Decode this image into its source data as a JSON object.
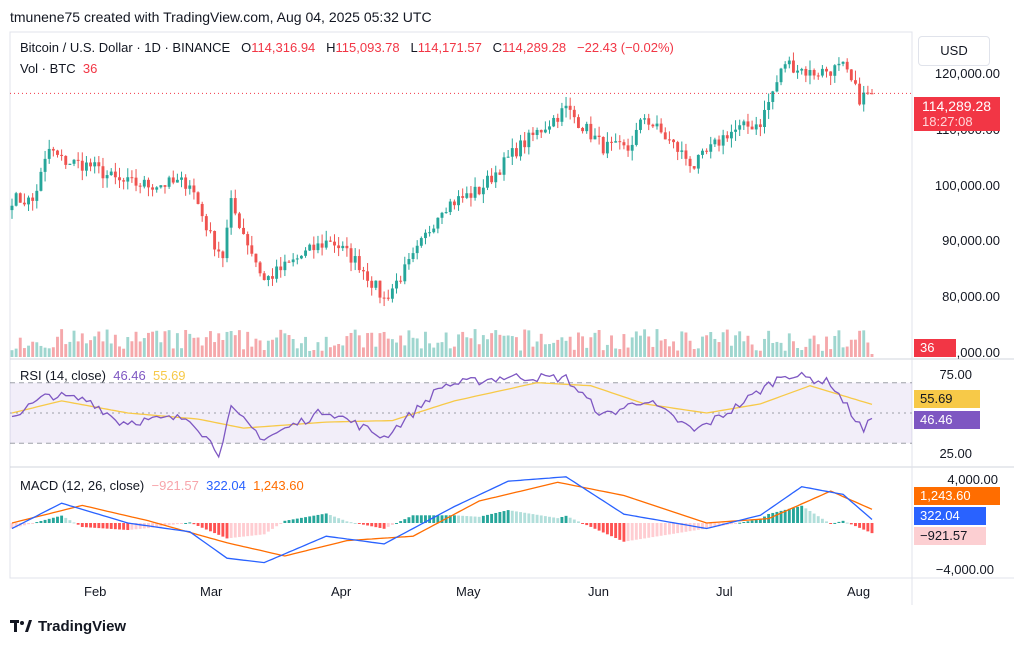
{
  "header": {
    "attribution": "tmunene75 created with TradingView.com, Aug 04, 2025 05:32 UTC"
  },
  "legend": {
    "symbol": "Bitcoin / U.S. Dollar · 1D · BINANCE",
    "o_label": "O",
    "o_value": "114,316.94",
    "h_label": "H",
    "h_value": "115,093.78",
    "l_label": "L",
    "l_value": "114,171.57",
    "c_label": "C",
    "c_value": "114,289.28",
    "change": "−22.43 (−0.02%)",
    "vol_label": "Vol · BTC",
    "vol_value": "36"
  },
  "currency_button": "USD",
  "price_axis": {
    "ticks": [
      "120,000.00",
      "110,000.00",
      "100,000.00",
      "90,000.00",
      "80,000.00",
      "70,000.00"
    ],
    "last_price": "114,289.28",
    "countdown": "18:27:08",
    "volume_badge": "36"
  },
  "rsi_panel": {
    "label": "RSI (14, close)",
    "rsi_value": "46.46",
    "ma_value": "55.69",
    "ticks": [
      "75.00",
      "25.00"
    ]
  },
  "macd_panel": {
    "label": "MACD (12, 26, close)",
    "hist_value": "−921.57",
    "macd_value": "322.04",
    "signal_value": "1,243.60",
    "ticks": [
      "4,000.00",
      "−4,000.00"
    ]
  },
  "time_axis": {
    "months": [
      "Feb",
      "Mar",
      "Apr",
      "May",
      "Jun",
      "Jul",
      "Aug"
    ]
  },
  "footer": {
    "brand": "TradingView"
  },
  "colors": {
    "up": "#26a69a",
    "down": "#ef5350",
    "rsi": "#7e57c2",
    "rsi_ma": "#f7c948",
    "macd": "#2962ff",
    "signal": "#ff6d00",
    "last_price": "#f23645"
  },
  "chart_data": [
    {
      "type": "candlestick",
      "title": "Bitcoin / U.S. Dollar · 1D · BINANCE",
      "ylim": [
        70000,
        125000
      ],
      "x_start": "2025-01-08",
      "x_end": "2025-08-04",
      "anchors": [
        {
          "date": "2025-01-08",
          "close": 95000
        },
        {
          "date": "2025-01-13",
          "close": 94500
        },
        {
          "date": "2025-01-17",
          "close": 104000
        },
        {
          "date": "2025-01-20",
          "close": 102000
        },
        {
          "date": "2025-01-27",
          "close": 101000
        },
        {
          "date": "2025-02-03",
          "close": 98000
        },
        {
          "date": "2025-02-10",
          "close": 97500
        },
        {
          "date": "2025-02-20",
          "close": 98000
        },
        {
          "date": "2025-02-25",
          "close": 88000
        },
        {
          "date": "2025-02-28",
          "close": 84500
        },
        {
          "date": "2025-03-02",
          "close": 94000
        },
        {
          "date": "2025-03-10",
          "close": 80000
        },
        {
          "date": "2025-03-20",
          "close": 85000
        },
        {
          "date": "2025-03-26",
          "close": 87500
        },
        {
          "date": "2025-04-02",
          "close": 83000
        },
        {
          "date": "2025-04-08",
          "close": 76500
        },
        {
          "date": "2025-04-15",
          "close": 84000
        },
        {
          "date": "2025-04-22",
          "close": 93500
        },
        {
          "date": "2025-05-01",
          "close": 96500
        },
        {
          "date": "2025-05-10",
          "close": 104000
        },
        {
          "date": "2025-05-22",
          "close": 111500
        },
        {
          "date": "2025-05-31",
          "close": 104500
        },
        {
          "date": "2025-06-06",
          "close": 104000
        },
        {
          "date": "2025-06-10",
          "close": 110000
        },
        {
          "date": "2025-06-22",
          "close": 101000
        },
        {
          "date": "2025-06-30",
          "close": 107000
        },
        {
          "date": "2025-07-08",
          "close": 109000
        },
        {
          "date": "2025-07-14",
          "close": 120000
        },
        {
          "date": "2025-07-20",
          "close": 118000
        },
        {
          "date": "2025-07-28",
          "close": 119000
        },
        {
          "date": "2025-08-01",
          "close": 113500
        },
        {
          "date": "2025-08-04",
          "close": 114289.28
        }
      ],
      "last_candle": {
        "open": 114316.94,
        "high": 115093.78,
        "low": 114171.57,
        "close": 114289.28
      },
      "volume_last": 36
    },
    {
      "type": "line",
      "title": "RSI (14, close)",
      "ylim": [
        15,
        85
      ],
      "levels": [
        70,
        50,
        30
      ],
      "series": [
        {
          "name": "RSI",
          "anchors": [
            {
              "date": "2025-01-08",
              "y": 48
            },
            {
              "date": "2025-01-17",
              "y": 62
            },
            {
              "date": "2025-01-27",
              "y": 58
            },
            {
              "date": "2025-02-03",
              "y": 44
            },
            {
              "date": "2025-02-20",
              "y": 47
            },
            {
              "date": "2025-02-27",
              "y": 24
            },
            {
              "date": "2025-03-02",
              "y": 52
            },
            {
              "date": "2025-03-10",
              "y": 33
            },
            {
              "date": "2025-03-25",
              "y": 52
            },
            {
              "date": "2025-04-08",
              "y": 34
            },
            {
              "date": "2025-04-15",
              "y": 50
            },
            {
              "date": "2025-04-22",
              "y": 68
            },
            {
              "date": "2025-05-08",
              "y": 74
            },
            {
              "date": "2025-05-22",
              "y": 73
            },
            {
              "date": "2025-05-31",
              "y": 48
            },
            {
              "date": "2025-06-10",
              "y": 59
            },
            {
              "date": "2025-06-22",
              "y": 38
            },
            {
              "date": "2025-07-01",
              "y": 52
            },
            {
              "date": "2025-07-14",
              "y": 76
            },
            {
              "date": "2025-07-25",
              "y": 70
            },
            {
              "date": "2025-08-02",
              "y": 38
            },
            {
              "date": "2025-08-04",
              "y": 46.46
            }
          ]
        },
        {
          "name": "RSI-based MA",
          "anchors": [
            {
              "date": "2025-01-08",
              "y": 50
            },
            {
              "date": "2025-01-20",
              "y": 58
            },
            {
              "date": "2025-02-05",
              "y": 50
            },
            {
              "date": "2025-02-22",
              "y": 46
            },
            {
              "date": "2025-03-05",
              "y": 40
            },
            {
              "date": "2025-03-25",
              "y": 44
            },
            {
              "date": "2025-04-10",
              "y": 45
            },
            {
              "date": "2025-04-25",
              "y": 58
            },
            {
              "date": "2025-05-15",
              "y": 70
            },
            {
              "date": "2025-05-28",
              "y": 68
            },
            {
              "date": "2025-06-10",
              "y": 56
            },
            {
              "date": "2025-06-25",
              "y": 50
            },
            {
              "date": "2025-07-08",
              "y": 56
            },
            {
              "date": "2025-07-20",
              "y": 68
            },
            {
              "date": "2025-08-04",
              "y": 55.69
            }
          ]
        }
      ]
    },
    {
      "type": "line",
      "title": "MACD (12, 26, close)",
      "ylim": [
        -5000,
        5000
      ],
      "series": [
        {
          "name": "MACD",
          "anchors": [
            {
              "date": "2025-01-08",
              "y": -500
            },
            {
              "date": "2025-01-20",
              "y": 1800
            },
            {
              "date": "2025-02-05",
              "y": 0
            },
            {
              "date": "2025-02-20",
              "y": -800
            },
            {
              "date": "2025-03-01",
              "y": -3200
            },
            {
              "date": "2025-03-10",
              "y": -3600
            },
            {
              "date": "2025-03-25",
              "y": -1200
            },
            {
              "date": "2025-04-08",
              "y": -1900
            },
            {
              "date": "2025-04-25",
              "y": 1500
            },
            {
              "date": "2025-05-08",
              "y": 3800
            },
            {
              "date": "2025-05-22",
              "y": 4200
            },
            {
              "date": "2025-06-05",
              "y": 800
            },
            {
              "date": "2025-06-25",
              "y": -500
            },
            {
              "date": "2025-07-08",
              "y": 700
            },
            {
              "date": "2025-07-18",
              "y": 3300
            },
            {
              "date": "2025-07-28",
              "y": 2600
            },
            {
              "date": "2025-08-04",
              "y": 322.04
            }
          ]
        },
        {
          "name": "Signal",
          "anchors": [
            {
              "date": "2025-01-08",
              "y": 0
            },
            {
              "date": "2025-01-25",
              "y": 1600
            },
            {
              "date": "2025-02-10",
              "y": 200
            },
            {
              "date": "2025-03-01",
              "y": -1800
            },
            {
              "date": "2025-03-15",
              "y": -3000
            },
            {
              "date": "2025-03-30",
              "y": -1600
            },
            {
              "date": "2025-04-15",
              "y": -1200
            },
            {
              "date": "2025-05-01",
              "y": 2000
            },
            {
              "date": "2025-05-20",
              "y": 3700
            },
            {
              "date": "2025-06-05",
              "y": 2500
            },
            {
              "date": "2025-06-25",
              "y": 0
            },
            {
              "date": "2025-07-10",
              "y": 400
            },
            {
              "date": "2025-07-25",
              "y": 2900
            },
            {
              "date": "2025-08-04",
              "y": 1243.6
            }
          ]
        }
      ]
    }
  ]
}
